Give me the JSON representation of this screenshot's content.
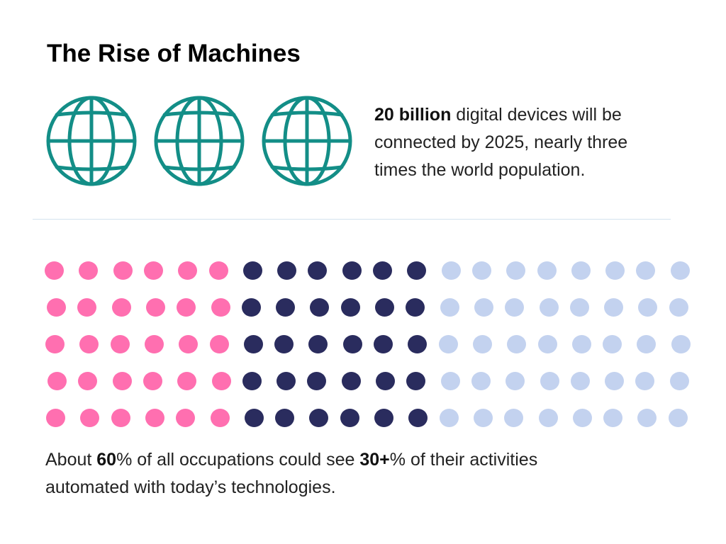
{
  "title": "The Rise of Machines",
  "globe_icons": [
    "globe-icon",
    "globe-icon",
    "globe-icon"
  ],
  "devices_stat": {
    "bold": "20 billion",
    "rest_line1": " digital devices will be",
    "line2": "connected by 2025, nearly three",
    "line3": "times the world population."
  },
  "automation_stat": {
    "pre": "About ",
    "bold1": "60",
    "mid": "% of all occupations could see ",
    "bold2": "30+",
    "post_line1": "% of their activities",
    "line2": "automated with today’s technologies."
  },
  "dot_grid": {
    "rows": 5,
    "groups": [
      {
        "color": "#ff6fb0",
        "columns": 6
      },
      {
        "color": "#2a2c5e",
        "columns": 6
      },
      {
        "color": "#c3d2ef",
        "columns": 8
      }
    ]
  },
  "colors": {
    "globe": "#138e87",
    "divider": "#d3e3ee"
  }
}
